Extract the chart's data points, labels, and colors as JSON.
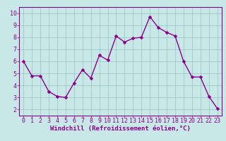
{
  "x": [
    0,
    1,
    2,
    3,
    4,
    5,
    6,
    7,
    8,
    9,
    10,
    11,
    12,
    13,
    14,
    15,
    16,
    17,
    18,
    19,
    20,
    21,
    22,
    23
  ],
  "y": [
    6.0,
    4.8,
    4.8,
    3.5,
    3.1,
    3.0,
    4.2,
    5.3,
    4.6,
    6.5,
    6.1,
    8.1,
    7.6,
    7.9,
    8.0,
    9.7,
    8.8,
    8.4,
    8.1,
    6.0,
    4.7,
    4.7,
    3.1,
    2.1
  ],
  "line_color": "#8b008b",
  "marker": "D",
  "marker_size": 2.5,
  "line_width": 1.0,
  "bg_color": "#c8e8e8",
  "grid_color": "#a0c8c8",
  "xlabel": "Windchill (Refroidissement éolien,°C)",
  "xlabel_color": "#8b008b",
  "xlabel_fontsize": 6.5,
  "tick_color": "#8b008b",
  "tick_fontsize": 6.0,
  "spine_color": "#8b008b",
  "xlim": [
    -0.5,
    23.5
  ],
  "ylim": [
    1.5,
    10.5
  ],
  "yticks": [
    2,
    3,
    4,
    5,
    6,
    7,
    8,
    9,
    10
  ],
  "xticks": [
    0,
    1,
    2,
    3,
    4,
    5,
    6,
    7,
    8,
    9,
    10,
    11,
    12,
    13,
    14,
    15,
    16,
    17,
    18,
    19,
    20,
    21,
    22,
    23
  ]
}
